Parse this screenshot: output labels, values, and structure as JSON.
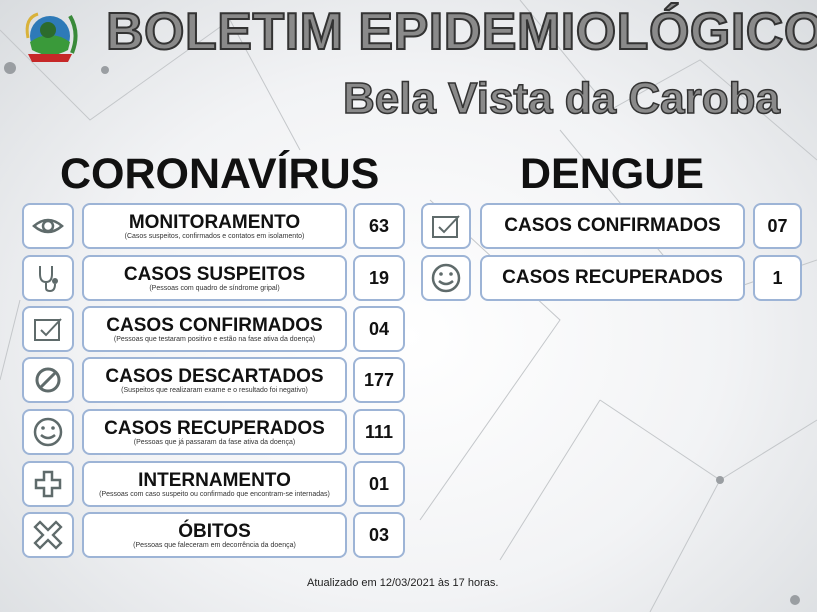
{
  "header": {
    "title": "BOLETIM EPIDEMIOLÓGICO",
    "subtitle": "Bela Vista da Caroba",
    "logo": "municipal-coat-of-arms"
  },
  "coronavirus": {
    "heading": "CORONAVÍRUS",
    "items": [
      {
        "icon": "eye-icon",
        "label": "MONITORAMENTO",
        "desc": "(Casos suspeitos, confirmados e contatos em isolamento)",
        "value": "63"
      },
      {
        "icon": "stethoscope-icon",
        "label": "CASOS SUSPEITOS",
        "desc": "(Pessoas com quadro de síndrome gripal)",
        "value": "19"
      },
      {
        "icon": "checkbox-icon",
        "label": "CASOS CONFIRMADOS",
        "desc": "(Pessoas que testaram positivo e estão na fase ativa da doença)",
        "value": "04"
      },
      {
        "icon": "prohibited-icon",
        "label": "CASOS DESCARTADOS",
        "desc": "(Suspeitos que realizaram exame e o resultado foi negativo)",
        "value": "177"
      },
      {
        "icon": "smiley-icon",
        "label": "CASOS RECUPERADOS",
        "desc": "(Pessoas que já passaram da fase ativa da doença)",
        "value": "111"
      },
      {
        "icon": "cross-icon",
        "label": "INTERNAMENTO",
        "desc": "(Pessoas com caso suspeito ou confirmado que encontram-se internadas)",
        "value": "01"
      },
      {
        "icon": "x-icon",
        "label": "ÓBITOS",
        "desc": "(Pessoas que faleceram em decorrência da doença)",
        "value": "03"
      }
    ]
  },
  "dengue": {
    "heading": "DENGUE",
    "items": [
      {
        "icon": "checkbox-icon",
        "label": "CASOS CONFIRMADOS",
        "value": "07"
      },
      {
        "icon": "smiley-icon",
        "label": "CASOS RECUPERADOS",
        "value": "1"
      }
    ]
  },
  "footer": "Atualizado em 12/03/2021 às 17 horas.",
  "colors": {
    "border": "#9db4d6",
    "icon": "#5f6b6b"
  }
}
